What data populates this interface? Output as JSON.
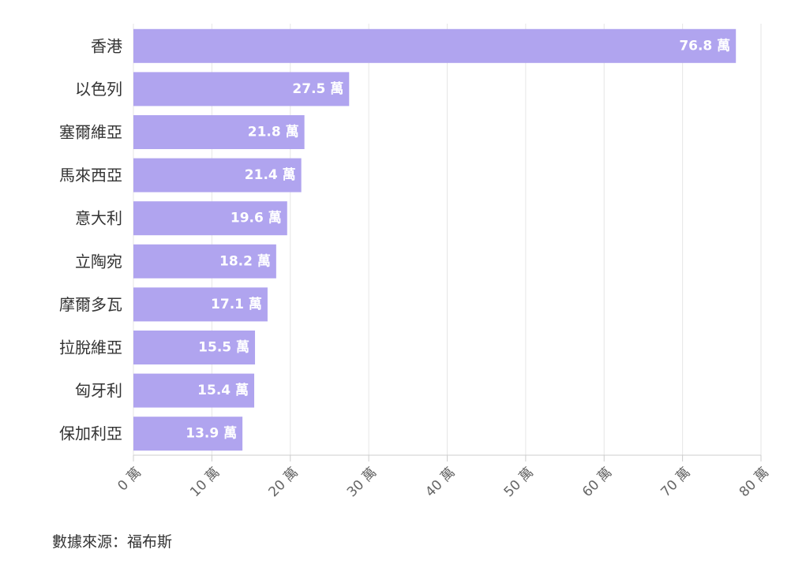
{
  "chart_data": {
    "type": "bar",
    "orientation": "horizontal",
    "categories": [
      "香港",
      "以色列",
      "塞爾維亞",
      "馬來西亞",
      "意大利",
      "立陶宛",
      "摩爾多瓦",
      "拉脫維亞",
      "匈牙利",
      "保加利亞"
    ],
    "values": [
      76.8,
      27.5,
      21.8,
      21.4,
      19.6,
      18.2,
      17.1,
      15.5,
      15.4,
      13.9
    ],
    "value_labels": [
      "76.8 萬",
      "27.5 萬",
      "21.8 萬",
      "21.4 萬",
      "19.6 萬",
      "18.2 萬",
      "17.1 萬",
      "15.5 萬",
      "15.4 萬",
      "13.9 萬"
    ],
    "xticks": [
      0,
      10,
      20,
      30,
      40,
      50,
      60,
      70,
      80
    ],
    "xtick_labels": [
      "0 萬",
      "10 萬",
      "20 萬",
      "30 萬",
      "40 萬",
      "50 萬",
      "60 萬",
      "70 萬",
      "80 萬"
    ],
    "xlim": [
      0,
      80
    ],
    "grid": true,
    "bar_color": "#b0a4ef"
  },
  "source": "數據來源：福布斯"
}
